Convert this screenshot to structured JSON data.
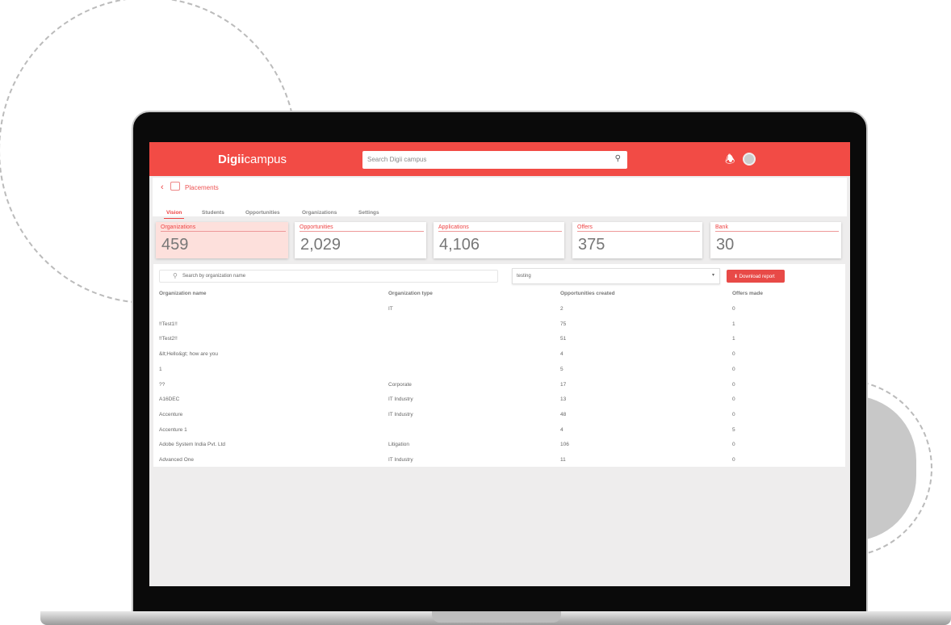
{
  "app": {
    "logo_bold": "Digii",
    "logo_light": "campus",
    "search_placeholder": "Search Digii campus"
  },
  "breadcrumb": {
    "label": "Placements"
  },
  "tabs": [
    {
      "label": "Vision",
      "active": true
    },
    {
      "label": "Students"
    },
    {
      "label": "Opportunities"
    },
    {
      "label": "Organizations"
    },
    {
      "label": "Settings"
    }
  ],
  "stats": [
    {
      "label": "Organizations",
      "value": "459",
      "selected": true
    },
    {
      "label": "Opportunities",
      "value": "2,029"
    },
    {
      "label": "Applications",
      "value": "4,106"
    },
    {
      "label": "Offers",
      "value": "375"
    },
    {
      "label": "Bank",
      "value": "30"
    }
  ],
  "toolbar": {
    "search_placeholder": "Search by organization name",
    "filter_value": "testing",
    "download_label": "Download report"
  },
  "table": {
    "headers": [
      "Organization name",
      "Organization type",
      "Opportunities created",
      "Offers made"
    ],
    "rows": [
      [
        "",
        "IT",
        "2",
        "0"
      ],
      [
        "!!Test1!!",
        "",
        "75",
        "1"
      ],
      [
        "!!Test2!!",
        "",
        "51",
        "1"
      ],
      [
        "&lt;Hello&gt; how are you",
        "",
        "4",
        "0"
      ],
      [
        "1",
        "",
        "5",
        "0"
      ],
      [
        "??",
        "Corporate",
        "17",
        "0"
      ],
      [
        "A16DEC",
        "IT Industry",
        "13",
        "0"
      ],
      [
        "Accenture",
        "IT Industry",
        "48",
        "0"
      ],
      [
        "Accenture 1",
        "",
        "4",
        "5"
      ],
      [
        "Adobe System India Pvt. Ltd",
        "Litigation",
        "106",
        "0"
      ],
      [
        "Advanced One",
        "IT Industry",
        "11",
        "0"
      ]
    ]
  },
  "colors": {
    "brand": "#f24b45"
  }
}
